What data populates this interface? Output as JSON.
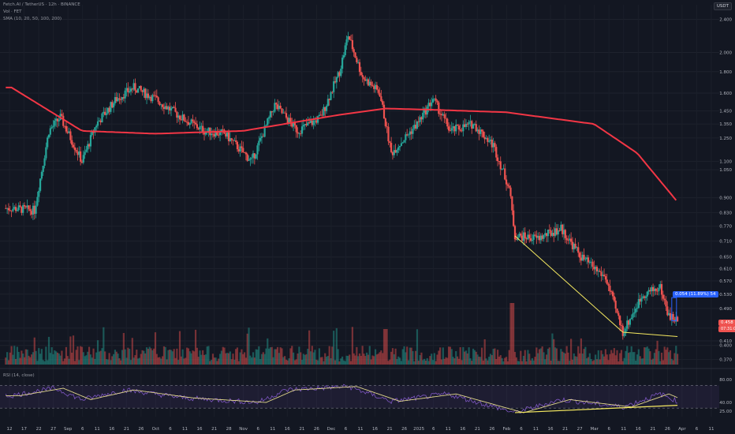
{
  "header": {
    "symbol_line": "Fetch.AI / TetherUS · 12h · BINANCE",
    "vol_line": "Vol · FET",
    "sma_line": "SMA (10, 20, 50, 100, 200)",
    "currency": "USDT"
  },
  "rsi_label": "RSI (14, close)",
  "price_boxes": {
    "measure": "0.054 (11.89%) 54",
    "last_price": "0.458",
    "countdown": "07:31:08"
  },
  "colors": {
    "up": "#26a69a",
    "down": "#ef5350",
    "sma": "#f23645",
    "trendline": "#f5e960",
    "rsi": "#7e57c2",
    "rsi_ma": "#e0d68a",
    "background": "#131722"
  },
  "chart_data": [
    {
      "type": "candlestick",
      "scale": "log",
      "y_ticks": [
        "2.400",
        "2.000",
        "1.800",
        "1.600",
        "1.450",
        "1.350",
        "1.250",
        "1.100",
        "1.050",
        "0.900",
        "0.830",
        "0.770",
        "0.710",
        "0.650",
        "0.610",
        "0.570",
        "0.530",
        "0.490",
        "0.440",
        "0.410",
        "0.400",
        "0.370"
      ],
      "x_ticks": [
        "12",
        "17",
        "22",
        "27",
        "Sep",
        "6",
        "11",
        "16",
        "21",
        "26",
        "Oct",
        "6",
        "11",
        "16",
        "21",
        "28",
        "Nov",
        "6",
        "11",
        "16",
        "21",
        "26",
        "Dec",
        "6",
        "11",
        "16",
        "21",
        "26",
        "2025",
        "6",
        "11",
        "16",
        "21",
        "26",
        "Feb",
        "6",
        "11",
        "16",
        "21",
        "27",
        "Mar",
        "6",
        "11",
        "16",
        "21",
        "26",
        "Apr",
        "6",
        "11"
      ],
      "approx_close_path": [
        {
          "date": "Aug 12",
          "close": 0.85
        },
        {
          "date": "Aug 20",
          "close": 0.84
        },
        {
          "date": "Aug 25",
          "close": 1.3
        },
        {
          "date": "Aug 29",
          "close": 1.4
        },
        {
          "date": "Sep 6",
          "close": 1.1
        },
        {
          "date": "Sep 11",
          "close": 1.35
        },
        {
          "date": "Sep 18",
          "close": 1.55
        },
        {
          "date": "Sep 24",
          "close": 1.65
        },
        {
          "date": "Oct 1",
          "close": 1.55
        },
        {
          "date": "Oct 10",
          "close": 1.4
        },
        {
          "date": "Oct 18",
          "close": 1.3
        },
        {
          "date": "Oct 25",
          "close": 1.28
        },
        {
          "date": "Nov 4",
          "close": 1.1
        },
        {
          "date": "Nov 12",
          "close": 1.5
        },
        {
          "date": "Nov 20",
          "close": 1.3
        },
        {
          "date": "Nov 28",
          "close": 1.4
        },
        {
          "date": "Dec 4",
          "close": 1.8
        },
        {
          "date": "Dec 7",
          "close": 2.2
        },
        {
          "date": "Dec 12",
          "close": 1.75
        },
        {
          "date": "Dec 18",
          "close": 1.6
        },
        {
          "date": "Dec 22",
          "close": 1.15
        },
        {
          "date": "Dec 31",
          "close": 1.35
        },
        {
          "date": "Jan 6",
          "close": 1.55
        },
        {
          "date": "Jan 12",
          "close": 1.3
        },
        {
          "date": "Jan 20",
          "close": 1.35
        },
        {
          "date": "Jan 27",
          "close": 1.2
        },
        {
          "date": "Feb 2",
          "close": 0.95
        },
        {
          "date": "Feb 4",
          "close": 0.73
        },
        {
          "date": "Feb 12",
          "close": 0.72
        },
        {
          "date": "Feb 20",
          "close": 0.76
        },
        {
          "date": "Feb 27",
          "close": 0.65
        },
        {
          "date": "Mar 5",
          "close": 0.58
        },
        {
          "date": "Mar 11",
          "close": 0.43
        },
        {
          "date": "Mar 18",
          "close": 0.53
        },
        {
          "date": "Mar 24",
          "close": 0.55
        },
        {
          "date": "Mar 27",
          "close": 0.47
        },
        {
          "date": "Mar 30",
          "close": 0.458
        }
      ],
      "sma_200_path": [
        {
          "date": "Aug 12",
          "value": 1.65
        },
        {
          "date": "Sep 6",
          "value": 1.3
        },
        {
          "date": "Oct 1",
          "value": 1.28
        },
        {
          "date": "Nov 1",
          "value": 1.3
        },
        {
          "date": "Dec 4",
          "value": 1.42
        },
        {
          "date": "Dec 20",
          "value": 1.47
        },
        {
          "date": "Jan 6",
          "value": 1.46
        },
        {
          "date": "Feb 1",
          "value": 1.44
        },
        {
          "date": "Mar 1",
          "value": 1.35
        },
        {
          "date": "Mar 16",
          "value": 1.15
        },
        {
          "date": "Mar 30",
          "value": 0.88
        }
      ],
      "annotations": [
        {
          "type": "trendline",
          "from": {
            "date": "Feb 4",
            "price": 0.73
          },
          "to": {
            "date": "Mar 11",
            "price": 0.43
          }
        },
        {
          "type": "trendline",
          "from": {
            "date": "Mar 11",
            "price": 0.43
          },
          "to": {
            "date": "Mar 30",
            "price": 0.42
          }
        }
      ]
    },
    {
      "type": "line",
      "name": "RSI (14, close)",
      "y_ticks": [
        "80.00",
        "40.00",
        "25.00"
      ],
      "levels": [
        70,
        30
      ],
      "approx_path": [
        {
          "date": "Aug 12",
          "value": 52
        },
        {
          "date": "Aug 27",
          "value": 65
        },
        {
          "date": "Sep 6",
          "value": 45
        },
        {
          "date": "Sep 21",
          "value": 62
        },
        {
          "date": "Oct 11",
          "value": 48
        },
        {
          "date": "Nov 6",
          "value": 40
        },
        {
          "date": "Nov 16",
          "value": 62
        },
        {
          "date": "Dec 7",
          "value": 68
        },
        {
          "date": "Dec 22",
          "value": 42
        },
        {
          "date": "Jan 11",
          "value": 55
        },
        {
          "date": "Feb 4",
          "value": 22
        },
        {
          "date": "Feb 20",
          "value": 45
        },
        {
          "date": "Mar 11",
          "value": 32
        },
        {
          "date": "Mar 24",
          "value": 55
        },
        {
          "date": "Mar 30",
          "value": 42
        }
      ],
      "annotations": [
        {
          "type": "trendline",
          "from": {
            "date": "Feb 4",
            "value": 22
          },
          "to": {
            "date": "Mar 30",
            "value": 35
          }
        }
      ]
    }
  ]
}
